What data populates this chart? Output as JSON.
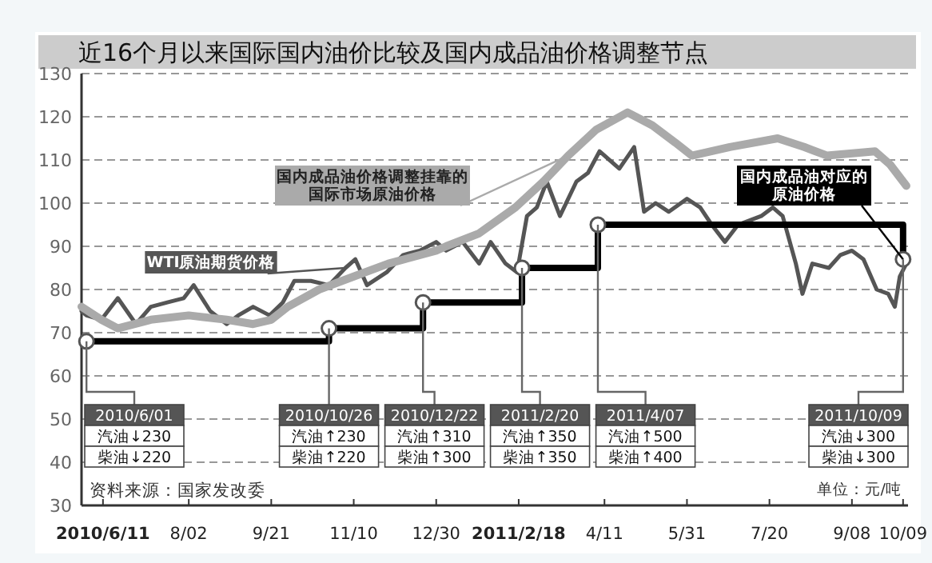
{
  "chart_data": {
    "type": "line",
    "title": "近16个月以来国际国内油价比较及国内成品油价格调整节点",
    "xlim": [
      "2010-05-29",
      "2011-10-12"
    ],
    "xticks": [
      {
        "value": "2010-06-11",
        "label": "2010/6/11"
      },
      {
        "value": "2010-08-02",
        "label": "8/02"
      },
      {
        "value": "2010-09-21",
        "label": "9/21"
      },
      {
        "value": "2010-11-10",
        "label": "11/10"
      },
      {
        "value": "2010-12-30",
        "label": "12/30"
      },
      {
        "value": "2011-02-18",
        "label": "2011/2/18"
      },
      {
        "value": "2011-04-11",
        "label": "4/11"
      },
      {
        "value": "2011-05-31",
        "label": "5/31"
      },
      {
        "value": "2011-07-20",
        "label": "7/20"
      },
      {
        "value": "2011-09-08",
        "label": "9/08"
      },
      {
        "value": "2011-10-09",
        "label": "10/09"
      }
    ],
    "ylim": [
      30,
      130
    ],
    "yticks": [
      30,
      40,
      50,
      60,
      70,
      80,
      90,
      100,
      110,
      120,
      130
    ],
    "grid": "y",
    "legend": false,
    "series": [
      {
        "name": "WTI原油期货价格",
        "color": "#555555",
        "x": [
          "2010-05-29",
          "2010-06-01",
          "2010-06-10",
          "2010-06-20",
          "2010-07-01",
          "2010-07-10",
          "2010-07-20",
          "2010-07-30",
          "2010-08-05",
          "2010-08-15",
          "2010-08-25",
          "2010-09-01",
          "2010-09-10",
          "2010-09-20",
          "2010-09-28",
          "2010-10-05",
          "2010-10-15",
          "2010-10-26",
          "2010-11-05",
          "2010-11-11",
          "2010-11-18",
          "2010-11-30",
          "2010-12-10",
          "2010-12-20",
          "2010-12-30",
          "2011-01-05",
          "2011-01-15",
          "2011-01-25",
          "2011-02-01",
          "2011-02-10",
          "2011-02-17",
          "2011-02-23",
          "2011-03-01",
          "2011-03-07",
          "2011-03-15",
          "2011-03-25",
          "2011-04-01",
          "2011-04-08",
          "2011-04-20",
          "2011-04-29",
          "2011-05-05",
          "2011-05-12",
          "2011-05-20",
          "2011-05-31",
          "2011-06-08",
          "2011-06-15",
          "2011-06-23",
          "2011-07-01",
          "2011-07-08",
          "2011-07-15",
          "2011-07-22",
          "2011-07-28",
          "2011-08-05",
          "2011-08-09",
          "2011-08-15",
          "2011-08-25",
          "2011-09-01",
          "2011-09-08",
          "2011-09-15",
          "2011-09-23",
          "2011-09-30",
          "2011-10-04",
          "2011-10-07",
          "2011-10-11"
        ],
        "values": [
          75,
          74,
          73,
          78,
          72,
          76,
          77,
          78,
          81,
          75,
          72,
          74,
          76,
          74,
          77,
          82,
          82,
          81,
          85,
          87,
          81,
          84,
          88,
          89,
          91,
          89,
          91,
          86,
          91,
          86,
          84,
          97,
          99,
          105,
          97,
          105,
          107,
          112,
          108,
          113,
          98,
          100,
          98,
          101,
          99,
          95,
          91,
          95,
          96,
          97,
          99,
          97,
          86,
          79,
          86,
          85,
          88,
          89,
          87,
          80,
          79,
          76,
          83,
          86
        ]
      },
      {
        "name": "国内成品油价格调整挂靠的国际市场原油价格",
        "color": "#aaaaaa",
        "x": [
          "2010-05-29",
          "2010-06-10",
          "2010-06-20",
          "2010-07-10",
          "2010-08-02",
          "2010-08-25",
          "2010-09-10",
          "2010-09-21",
          "2010-10-01",
          "2010-10-20",
          "2010-11-10",
          "2010-12-01",
          "2010-12-30",
          "2011-01-05",
          "2011-01-25",
          "2011-02-16",
          "2011-03-05",
          "2011-03-20",
          "2011-04-06",
          "2011-04-25",
          "2011-05-10",
          "2011-05-24",
          "2011-06-03",
          "2011-06-26",
          "2011-07-25",
          "2011-08-10",
          "2011-08-24",
          "2011-09-22",
          "2011-10-01",
          "2011-10-11"
        ],
        "values": [
          76,
          73,
          71,
          73,
          74,
          73,
          72,
          73,
          76,
          80,
          83,
          86,
          89,
          90,
          93,
          99,
          105,
          111,
          117,
          121,
          118,
          114,
          111,
          113,
          115,
          113,
          111,
          112,
          109,
          104
        ]
      },
      {
        "name": "国内成品油对应的原油价格",
        "type": "step",
        "marker": "circle",
        "color": "#000000",
        "x": [
          "2010-06-01",
          "2010-10-26",
          "2010-12-22",
          "2011-02-20",
          "2011-04-07",
          "2011-10-09"
        ],
        "values": [
          68,
          71,
          77,
          85,
          95,
          87
        ]
      }
    ],
    "annotations": [
      {
        "text": "2010/6/01\n汽油↓230\n柴油↓220",
        "x": "2010-06-01",
        "y": 68
      },
      {
        "text": "2010/10/26\n汽油↑230\n柴油↑220",
        "x": "2010-10-26",
        "y": 71
      },
      {
        "text": "2010/12/22\n汽油↑310\n柴油↑300",
        "x": "2010-12-22",
        "y": 77
      },
      {
        "text": "2011/2/20\n汽油↑350\n柴油↑350",
        "x": "2011-02-20",
        "y": 85
      },
      {
        "text": "2011/4/07\n汽油↑500\n柴油↑400",
        "x": "2011-04-07",
        "y": 95
      },
      {
        "text": "2011/10/09\n汽油↓300\n柴油↓300",
        "x": "2011-10-09",
        "y": 87
      },
      "资料来源：国家发改委",
      "单位：元/吨"
    ]
  }
}
